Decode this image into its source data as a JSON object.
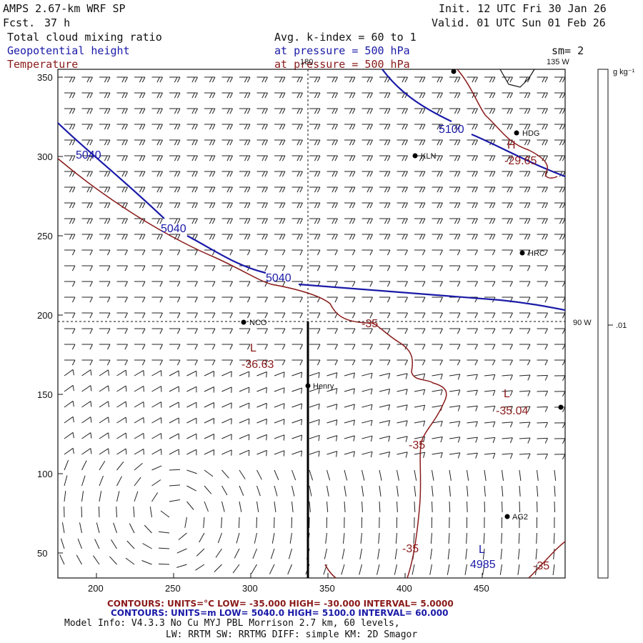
{
  "header": {
    "model": "AMPS 2.67-km WRF SP",
    "forecast_label": "Fcst.",
    "forecast_value": "37 h",
    "init": "Init. 12 UTC Fri 30 Jan 26",
    "valid": "Valid. 01 UTC Sun 01 Feb 26",
    "field1": "Total cloud mixing ratio",
    "field2": "Geopotential height",
    "field3": "Temperature",
    "avg": "Avg. k-index =  60 to   1",
    "pressure1": "at pressure =  500 hPa",
    "pressure2": "at pressure =  500 hPa",
    "sm": "sm= 2"
  },
  "colorbar": {
    "unit": "g kg⁻¹",
    "tick": ".01"
  },
  "map": {
    "lon_labels": {
      "top_dash": "180",
      "top_right": "135 W",
      "right_mid": "90 W"
    },
    "x_ticks": [
      "200",
      "250",
      "300",
      "350",
      "400",
      "450"
    ],
    "y_ticks": [
      "350",
      "300",
      "250",
      "200",
      "150",
      "100",
      "50"
    ],
    "stations": [
      {
        "name": "KLN"
      },
      {
        "name": "HDG"
      },
      {
        "name": "HRC"
      },
      {
        "name": "NCO"
      },
      {
        "name": "Henry"
      },
      {
        "name": "AG2"
      }
    ],
    "height_labels": [
      "5040",
      "5040",
      "5040",
      "5100",
      "4985"
    ],
    "temp_labels": [
      "-35",
      "-35",
      "-35",
      "-35"
    ],
    "extrema": [
      {
        "type": "L",
        "value": "-36.63"
      },
      {
        "type": "L",
        "value": "-35.04"
      },
      {
        "type": "H",
        "value": "-29.65"
      },
      {
        "type": "L",
        "value": "4985"
      }
    ]
  },
  "footer": {
    "red_line": "CONTOURS:  UNITS=°C  LOW= -35.000       HIGH= -30.000       INTERVAL=   5.0000",
    "blue_line": "CONTOURS:  UNITS=m   LOW=  5040.0        HIGH=  5100.0       INTERVAL=   60.000",
    "model_info": "Model Info: V4.3.3    No Cu    MYJ PBL  Morrison          2.7 km,  60 levels,",
    "model_info2": "LW: RRTM SW: RRTMG   DIFF: simple KM: 2D Smagor"
  },
  "colors": {
    "height": "#1a1aa8",
    "temperature": "#8a1a1a",
    "text": "#111111"
  }
}
